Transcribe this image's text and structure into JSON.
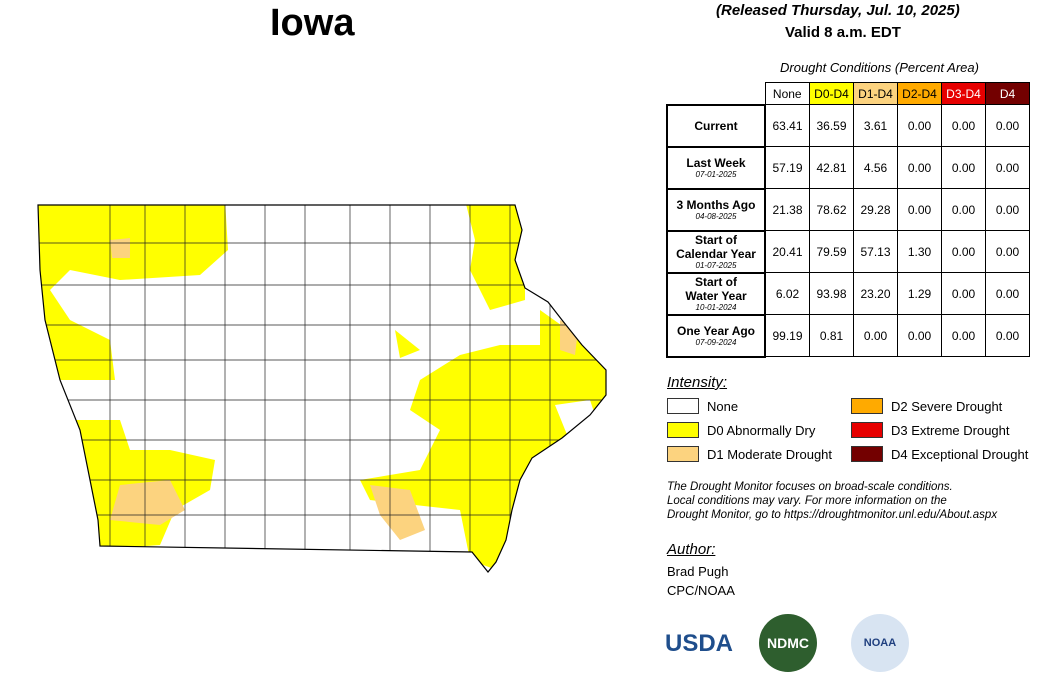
{
  "header": {
    "title": "Iowa",
    "released": "(Released Thursday, Jul. 10, 2025)",
    "valid": "Valid 8 a.m. EDT"
  },
  "table": {
    "caption": "Drought Conditions (Percent Area)",
    "columns": [
      "None",
      "D0-D4",
      "D1-D4",
      "D2-D4",
      "D3-D4",
      "D4"
    ],
    "column_colors": [
      "#ffffff",
      "#ffff00",
      "#fcd37f",
      "#ffaa00",
      "#e60000",
      "#730000"
    ],
    "rows": [
      {
        "label": [
          "Current"
        ],
        "values": [
          "63.41",
          "36.59",
          "3.61",
          "0.00",
          "0.00",
          "0.00"
        ]
      },
      {
        "label": [
          "Last Week"
        ],
        "date": "07-01-2025",
        "values": [
          "57.19",
          "42.81",
          "4.56",
          "0.00",
          "0.00",
          "0.00"
        ]
      },
      {
        "label": [
          "3 Months Ago"
        ],
        "date": "04-08-2025",
        "values": [
          "21.38",
          "78.62",
          "29.28",
          "0.00",
          "0.00",
          "0.00"
        ]
      },
      {
        "label": [
          "Start of",
          "Calendar Year"
        ],
        "date": "01-07-2025",
        "values": [
          "20.41",
          "79.59",
          "57.13",
          "1.30",
          "0.00",
          "0.00"
        ]
      },
      {
        "label": [
          "Start of",
          "Water Year"
        ],
        "date": "10-01-2024",
        "values": [
          "6.02",
          "93.98",
          "23.20",
          "1.29",
          "0.00",
          "0.00"
        ]
      },
      {
        "label": [
          "One Year Ago"
        ],
        "date": "07-09-2024",
        "values": [
          "99.19",
          "0.81",
          "0.00",
          "0.00",
          "0.00",
          "0.00"
        ]
      }
    ]
  },
  "legend": {
    "title": "Intensity:",
    "items": [
      {
        "label": "None",
        "color": "#ffffff"
      },
      {
        "label": "D2 Severe Drought",
        "color": "#ffaa00"
      },
      {
        "label": "D0 Abnormally Dry",
        "color": "#ffff00"
      },
      {
        "label": "D3 Extreme Drought",
        "color": "#e60000"
      },
      {
        "label": "D1 Moderate Drought",
        "color": "#fcd37f"
      },
      {
        "label": "D4 Exceptional Drought",
        "color": "#730000"
      }
    ]
  },
  "note": [
    "The Drought Monitor focuses on broad-scale conditions.",
    "Local conditions may vary. For more information on the",
    "Drought Monitor, go to https://droughtmonitor.unl.edu/About.aspx"
  ],
  "author": {
    "title": "Author:",
    "lines": [
      "Brad Pugh",
      "CPC/NOAA"
    ]
  },
  "logos": [
    "USDA",
    "NDMC",
    "NOAA"
  ]
}
